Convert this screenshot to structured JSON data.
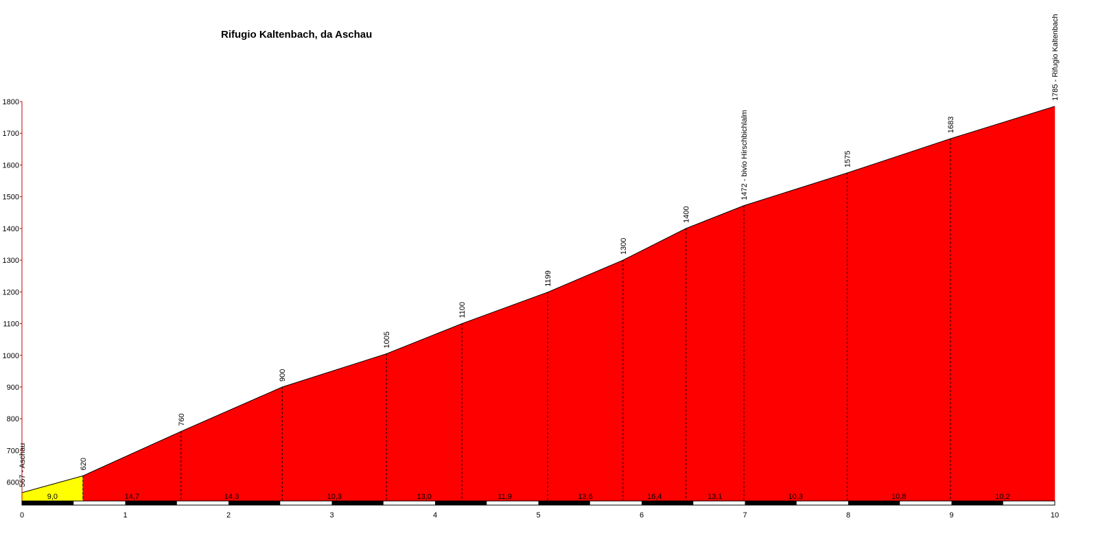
{
  "chart_data": {
    "type": "area",
    "title": "Rifugio Kaltenbach, da Aschau",
    "xlabel": "",
    "ylabel": "",
    "xlim": [
      0,
      10
    ],
    "ylim": [
      530,
      1800
    ],
    "x_ticks": [
      "0",
      "1",
      "2",
      "3",
      "4",
      "5",
      "6",
      "7",
      "8",
      "9",
      "10"
    ],
    "y_ticks": [
      "600",
      "700",
      "800",
      "900",
      "1000",
      "1100",
      "1200",
      "1300",
      "1400",
      "1500",
      "1600",
      "1700",
      "1800"
    ],
    "x_tick_values": [
      0,
      1,
      2,
      3,
      4,
      5,
      6,
      7,
      8,
      9,
      10
    ],
    "y_tick_values": [
      600,
      700,
      800,
      900,
      1000,
      1100,
      1200,
      1300,
      1400,
      1500,
      1600,
      1700,
      1800
    ],
    "points": [
      {
        "x": 0,
        "y": 567,
        "label": "567 - Aschau"
      },
      {
        "x": 0.59,
        "y": 620,
        "label": "620"
      },
      {
        "x": 1.54,
        "y": 760,
        "label": "760"
      },
      {
        "x": 2.52,
        "y": 900,
        "label": "900"
      },
      {
        "x": 3.53,
        "y": 1005,
        "label": "1005"
      },
      {
        "x": 4.26,
        "y": 1100,
        "label": "1100"
      },
      {
        "x": 5.09,
        "y": 1199,
        "label": "1199"
      },
      {
        "x": 5.82,
        "y": 1300,
        "label": "1300"
      },
      {
        "x": 6.43,
        "y": 1400,
        "label": "1400"
      },
      {
        "x": 6.99,
        "y": 1472,
        "label": "1472 - bivio Hirschbichlalm"
      },
      {
        "x": 7.99,
        "y": 1575,
        "label": "1575"
      },
      {
        "x": 8.99,
        "y": 1683,
        "label": "1683"
      },
      {
        "x": 10,
        "y": 1785,
        "label": "1785 - Rifugio Kaltenbach"
      }
    ],
    "segments": [
      {
        "from": 0,
        "to": 0.59,
        "gradient": "9,0",
        "color": "#ffff00"
      },
      {
        "from": 0.59,
        "to": 1.54,
        "gradient": "14,7",
        "color": "#ff0000"
      },
      {
        "from": 1.54,
        "to": 2.52,
        "gradient": "14,3",
        "color": "#ff0000"
      },
      {
        "from": 2.52,
        "to": 3.53,
        "gradient": "10,3",
        "color": "#ff0000"
      },
      {
        "from": 3.53,
        "to": 4.26,
        "gradient": "13,0",
        "color": "#ff0000"
      },
      {
        "from": 4.26,
        "to": 5.09,
        "gradient": "11,9",
        "color": "#ff0000"
      },
      {
        "from": 5.09,
        "to": 5.82,
        "gradient": "13,6",
        "color": "#ff0000"
      },
      {
        "from": 5.82,
        "to": 6.43,
        "gradient": "16,4",
        "color": "#ff0000"
      },
      {
        "from": 6.43,
        "to": 6.99,
        "gradient": "13,1",
        "color": "#ff0000"
      },
      {
        "from": 6.99,
        "to": 7.99,
        "gradient": "10,3",
        "color": "#ff0000"
      },
      {
        "from": 7.99,
        "to": 8.99,
        "gradient": "10,8",
        "color": "#ff0000"
      },
      {
        "from": 8.99,
        "to": 10,
        "gradient": "10,2",
        "color": "#ff0000"
      }
    ],
    "scale_bar_colors": [
      "#000000",
      "#ffffff"
    ],
    "axis_color": "#c00000",
    "grid": false,
    "legend": "none"
  }
}
